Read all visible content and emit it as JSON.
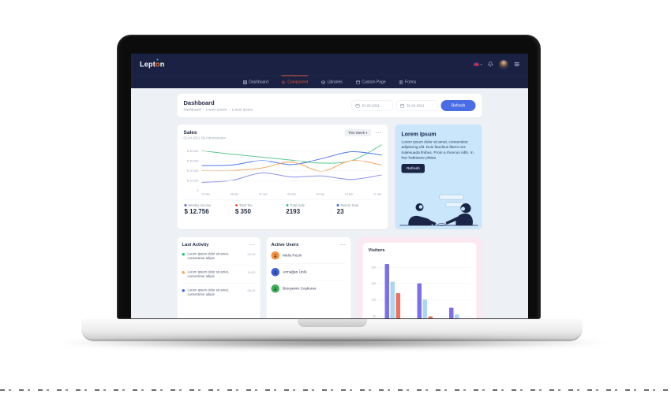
{
  "navbar": {
    "logo_part1": "Lept",
    "logo_accent": "o",
    "logo_part2": "n",
    "menu": [
      {
        "label": "Dashboard",
        "active": false
      },
      {
        "label": "Component",
        "active": true
      },
      {
        "label": "Libraries",
        "active": false
      },
      {
        "label": "Custom Page",
        "active": false
      },
      {
        "label": "Forms",
        "active": false
      }
    ],
    "icons": [
      "language-flag",
      "notifications-bell",
      "user-avatar",
      "settings-sliders"
    ],
    "accent_color": "#e0563c"
  },
  "page_header": {
    "title": "Dashboard",
    "breadcrumb": [
      "Dashboard",
      "Lorem Ipsum",
      "Lorem Ipsum"
    ],
    "date_from": "01.04.2021",
    "date_to": "01.04.2021",
    "refresh_label": "Refresh"
  },
  "sales": {
    "title": "Sales",
    "subtitle": "01.04.2021 By Administrator",
    "period_label": "This Week",
    "period_caret": "▾",
    "menu_label": "···",
    "stats": [
      {
        "label": "Weekly Income",
        "value": "$ 12.756",
        "color": "#5f5af6"
      },
      {
        "label": "Total Tax",
        "value": "$ 350",
        "color": "#f4563a"
      },
      {
        "label": "Total Sale",
        "value": "2193",
        "color": "#2ec784"
      },
      {
        "label": "Return Sale",
        "value": "23",
        "color": "#3e6ce0"
      }
    ]
  },
  "lorem_card": {
    "title": "Lorem Ipsum",
    "body": "Lorem ipsum dolor sit amet, consectetur adipiscing elit. Duis faucibus libero nec malesuada finibus. Proin a rhoncus nibh. In hac habitasse platea",
    "button_label": "Refresh"
  },
  "last_activity": {
    "title": "Last Activity",
    "menu_label": "···",
    "items": [
      {
        "text": "Lorem ipsum dolor sit amet, consectetur adipis",
        "time": "09:42",
        "color": "#2ec784"
      },
      {
        "text": "Lorem ipsum dolor sit amet, consectetur adipis",
        "time": "10:00",
        "color": "#f5a353"
      },
      {
        "text": "Lorem ipsum dolor sit amet, consectetur adipis",
        "time": "08:42",
        "color": "#3e6ce0"
      }
    ]
  },
  "active_users": {
    "title": "Active Users",
    "menu_label": "···",
    "users": [
      {
        "name": "Melis Pezin",
        "color": "#f59140"
      },
      {
        "name": "Armağan Ünlü",
        "color": "#3a5fd7"
      },
      {
        "name": "Bünyamin Coşkuner",
        "color": "#3faf5a"
      }
    ]
  },
  "visitors_card": {
    "title": "Visitors"
  },
  "chart_data": [
    {
      "type": "line",
      "title": "Sales",
      "x": [
        "05 Apr",
        "06 Apr",
        "07 Apr",
        "08 Apr",
        "09 Apr",
        "10 Apr",
        "11 Apr"
      ],
      "ylim": [
        0,
        47000
      ],
      "yticks": [
        {
          "value": 40000,
          "label": "$ 40.000"
        },
        {
          "value": 30000,
          "label": "$ 30.000"
        },
        {
          "value": 20000,
          "label": "$ 20.000"
        },
        {
          "value": 10000,
          "label": "$ 10.000"
        },
        {
          "value": 0,
          "label": "0"
        }
      ],
      "grid": true,
      "legend": "none",
      "series": [
        {
          "name": "green",
          "color": "#5fc88e",
          "values": [
            40000,
            36500,
            33500,
            30500,
            27500,
            30000,
            46000
          ]
        },
        {
          "name": "blue",
          "color": "#4a78e8",
          "values": [
            25000,
            25500,
            30000,
            26000,
            32000,
            39000,
            35500
          ]
        },
        {
          "name": "orange",
          "color": "#f5a962",
          "values": [
            20000,
            20000,
            22500,
            28500,
            19500,
            30000,
            25500
          ]
        },
        {
          "name": "periwinkle",
          "color": "#8b93e8",
          "values": [
            8000,
            10000,
            17500,
            13500,
            14500,
            11000,
            15500
          ]
        }
      ]
    },
    {
      "type": "bar",
      "title": "Visitors",
      "categories": [
        "",
        "",
        ""
      ],
      "ylim": [
        0,
        230
      ],
      "yticks": [
        {
          "value": 200,
          "label": "200"
        },
        {
          "value": 150,
          "label": "150"
        },
        {
          "value": 100,
          "label": "100"
        },
        {
          "value": 50,
          "label": "50"
        }
      ],
      "grid": true,
      "legend": "none",
      "series": [
        {
          "name": "purple",
          "color": "#7d6fe8",
          "values": [
            210,
            150,
            75
          ]
        },
        {
          "name": "light-blue",
          "color": "#a9d7f5",
          "values": [
            155,
            100,
            55
          ]
        },
        {
          "name": "red",
          "color": "#f2705b",
          "values": [
            120,
            48,
            30
          ]
        }
      ]
    }
  ]
}
